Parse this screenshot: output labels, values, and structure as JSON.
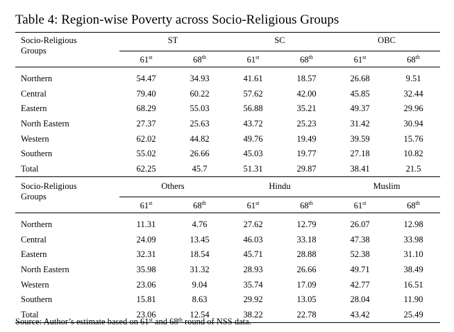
{
  "title": "Table 4: Region-wise Poverty across Socio-Religious Groups",
  "header_label_line1": "Socio-Religious",
  "header_label_line2": "Groups",
  "round_a": "61",
  "round_a_suffix": "st",
  "round_b": "68",
  "round_b_suffix": "th",
  "table1": {
    "groups": [
      "ST",
      "SC",
      "OBC"
    ],
    "rows": [
      {
        "region": "Northern",
        "values": [
          "54.47",
          "34.93",
          "41.61",
          "18.57",
          "26.68",
          "9.51"
        ]
      },
      {
        "region": "Central",
        "values": [
          "79.40",
          "60.22",
          "57.62",
          "42.00",
          "45.85",
          "32.44"
        ]
      },
      {
        "region": "Eastern",
        "values": [
          "68.29",
          "55.03",
          "56.88",
          "35.21",
          "49.37",
          "29.96"
        ]
      },
      {
        "region": "North Eastern",
        "values": [
          "27.37",
          "25.63",
          "43.72",
          "25.23",
          "31.42",
          "30.94"
        ]
      },
      {
        "region": "Western",
        "values": [
          "62.02",
          "44.82",
          "49.76",
          "19.49",
          "39.59",
          "15.76"
        ]
      },
      {
        "region": "Southern",
        "values": [
          "55.02",
          "26.66",
          "45.03",
          "19.77",
          "27.18",
          "10.82"
        ]
      },
      {
        "region": "Total",
        "values": [
          "62.25",
          "45.7",
          "51.31",
          "29.87",
          "38.41",
          "21.5"
        ]
      }
    ]
  },
  "table2": {
    "groups": [
      "Others",
      "Hindu",
      "Muslim"
    ],
    "rows": [
      {
        "region": "Northern",
        "values": [
          "11.31",
          "4.76",
          "27.62",
          "12.79",
          "26.07",
          "12.98"
        ]
      },
      {
        "region": "Central",
        "values": [
          "24.09",
          "13.45",
          "46.03",
          "33.18",
          "47.38",
          "33.98"
        ]
      },
      {
        "region": "Eastern",
        "values": [
          "32.31",
          "18.54",
          "45.71",
          "28.88",
          "52.38",
          "31.10"
        ]
      },
      {
        "region": "North Eastern",
        "values": [
          "35.98",
          "31.32",
          "28.93",
          "26.66",
          "49.71",
          "38.49"
        ]
      },
      {
        "region": "Western",
        "values": [
          "23.06",
          "9.04",
          "35.74",
          "17.09",
          "42.77",
          "16.51"
        ]
      },
      {
        "region": "Southern",
        "values": [
          "15.81",
          "8.63",
          "29.92",
          "13.05",
          "28.04",
          "11.90"
        ]
      },
      {
        "region": "Total",
        "values": [
          "23.06",
          "12.54",
          "38.22",
          "22.78",
          "43.42",
          "25.49"
        ]
      }
    ]
  },
  "source": {
    "prefix": "Source: Author’s estimate based on 61",
    "sup1": "st",
    "middle": " and 68",
    "sup2": "th",
    "suffix": " round of NSS data."
  }
}
